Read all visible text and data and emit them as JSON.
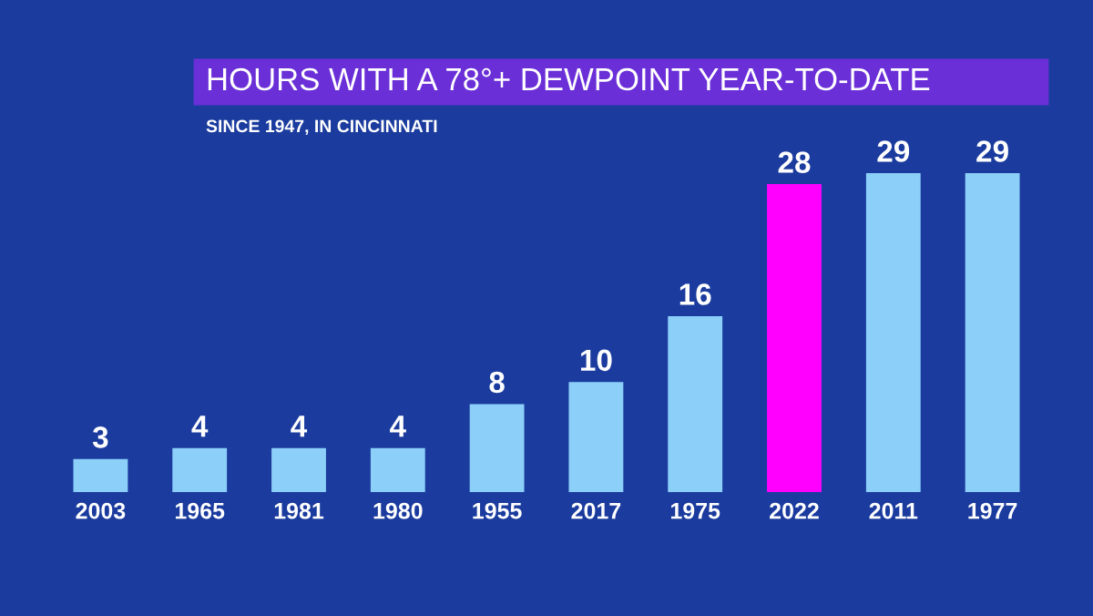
{
  "chart_data": {
    "type": "bar",
    "title": "HOURS WITH A 78°+ DEWPOINT YEAR-TO-DATE",
    "subtitle": "SINCE 1947, IN CINCINNATI",
    "categories": [
      "2003",
      "1965",
      "1981",
      "1980",
      "1955",
      "2017",
      "1975",
      "2022",
      "2011",
      "1977"
    ],
    "values": [
      3,
      4,
      4,
      4,
      8,
      10,
      16,
      28,
      29,
      29
    ],
    "colors": [
      "#8ccff8",
      "#8ccff8",
      "#8ccff8",
      "#8ccff8",
      "#8ccff8",
      "#8ccff8",
      "#8ccff8",
      "#ff00ff",
      "#8ccff8",
      "#8ccff8"
    ],
    "data_labels": true,
    "grid": false,
    "legend": false
  }
}
